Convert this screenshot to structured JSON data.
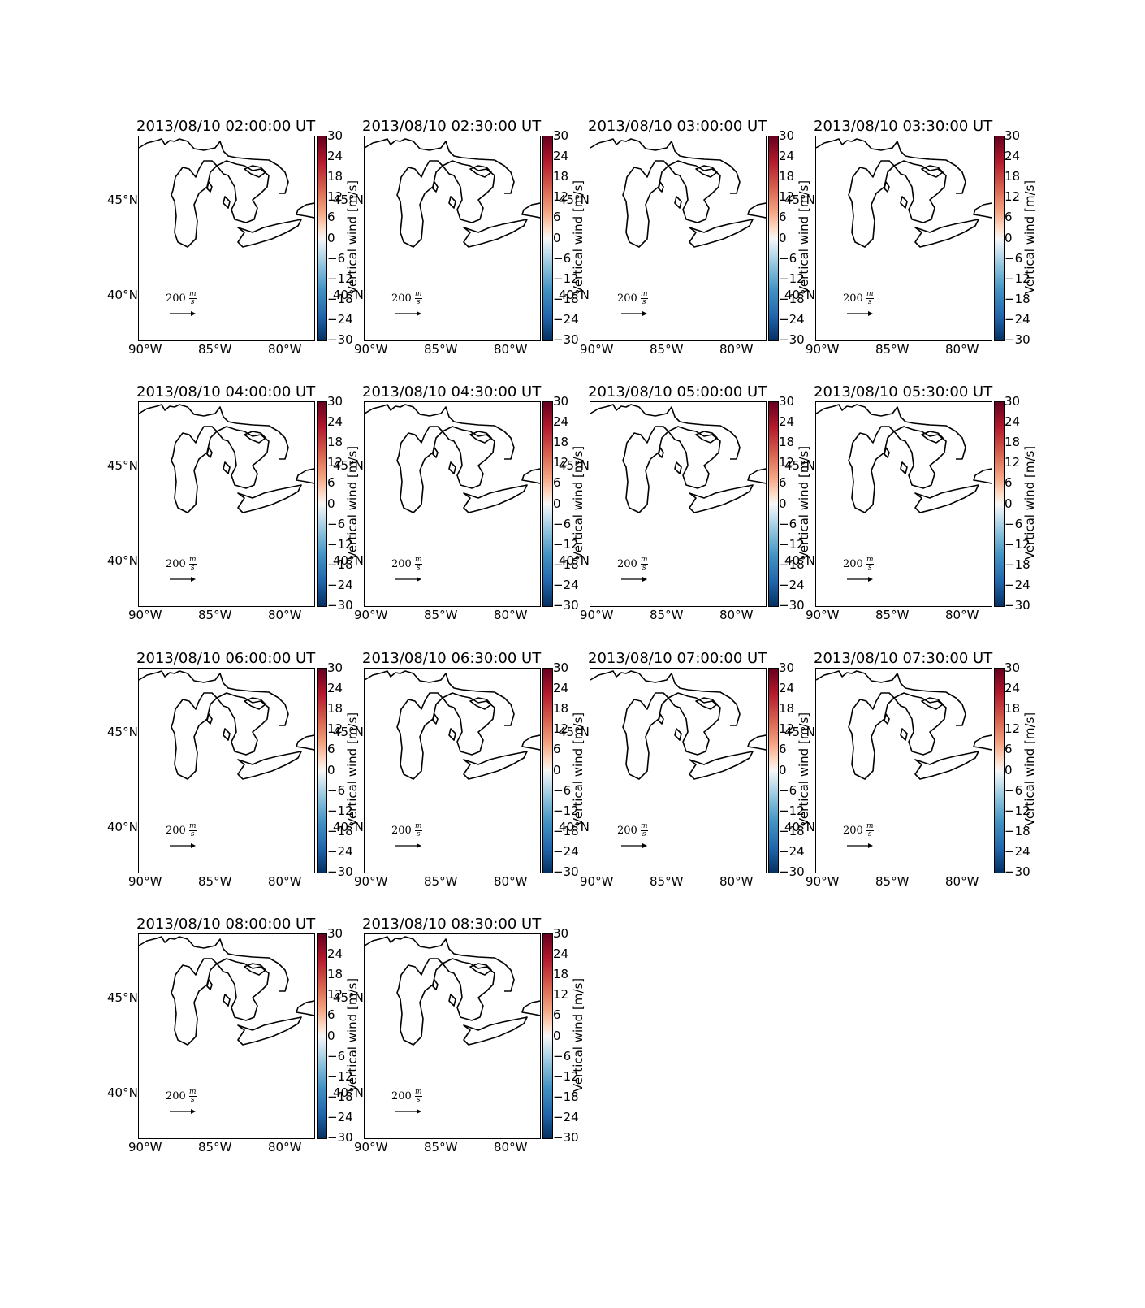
{
  "panels": [
    {
      "title": "2013/08/10 02:00:00 UT"
    },
    {
      "title": "2013/08/10 02:30:00 UT"
    },
    {
      "title": "2013/08/10 03:00:00 UT"
    },
    {
      "title": "2013/08/10 03:30:00 UT"
    },
    {
      "title": "2013/08/10 04:00:00 UT"
    },
    {
      "title": "2013/08/10 04:30:00 UT"
    },
    {
      "title": "2013/08/10 05:00:00 UT"
    },
    {
      "title": "2013/08/10 05:30:00 UT"
    },
    {
      "title": "2013/08/10 06:00:00 UT"
    },
    {
      "title": "2013/08/10 06:30:00 UT"
    },
    {
      "title": "2013/08/10 07:00:00 UT"
    },
    {
      "title": "2013/08/10 07:30:00 UT"
    },
    {
      "title": "2013/08/10 08:00:00 UT"
    },
    {
      "title": "2013/08/10 08:30:00 UT"
    }
  ],
  "lon_labels": [
    "90°W",
    "85°W",
    "80°W"
  ],
  "lat_labels": [
    "45°N",
    "40°N"
  ],
  "reference_vector": {
    "value": "200",
    "unit_num": "m",
    "unit_den": "s"
  },
  "colorbar": {
    "label": "Vertical wind [m/s]",
    "ticks": [
      "30",
      "24",
      "18",
      "12",
      "6",
      "0",
      "−6",
      "−12",
      "−18",
      "−24",
      "−30"
    ],
    "colormap": "RdBu_r",
    "colors": {
      "max": "#67001f",
      "mid": "#f7f7f7",
      "min": "#053061"
    }
  }
}
